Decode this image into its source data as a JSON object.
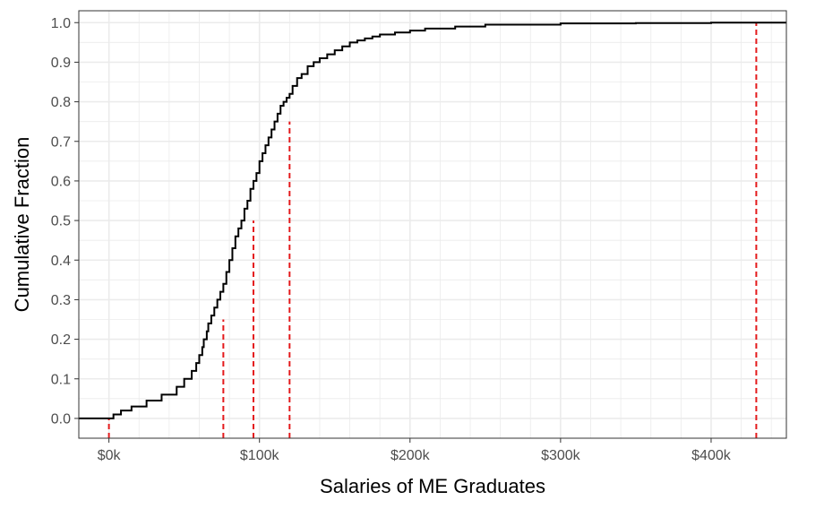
{
  "chart_data": {
    "type": "line",
    "title": "",
    "xlabel": "Salaries of ME Graduates",
    "ylabel": "Cumulative Fraction",
    "xlim": [
      -20000,
      450000
    ],
    "ylim": [
      -0.05,
      1.03
    ],
    "x_ticks": [
      0,
      100000,
      200000,
      300000,
      400000
    ],
    "x_tick_labels": [
      "$0k",
      "$100k",
      "$200k",
      "$300k",
      "$400k"
    ],
    "y_ticks": [
      0,
      0.1,
      0.2,
      0.3,
      0.4,
      0.5,
      0.6,
      0.7,
      0.8,
      0.9,
      1.0
    ],
    "y_tick_labels": [
      "0.0",
      "0.1",
      "0.2",
      "0.3",
      "0.4",
      "0.5",
      "0.6",
      "0.7",
      "0.8",
      "0.9",
      "1.0"
    ],
    "grid": true,
    "series": [
      {
        "kind": "ecdf-step",
        "color": "#000000",
        "x": [
          -20000,
          0,
          3000,
          8000,
          15000,
          25000,
          35000,
          45000,
          50000,
          55000,
          58000,
          60000,
          62000,
          63000,
          65000,
          66000,
          68000,
          70000,
          72000,
          74000,
          76000,
          78000,
          80000,
          82000,
          84000,
          86000,
          88000,
          90000,
          92000,
          94000,
          96000,
          98000,
          100000,
          102000,
          104000,
          106000,
          108000,
          110000,
          112000,
          114000,
          116000,
          118000,
          120000,
          122000,
          125000,
          128000,
          132000,
          136000,
          140000,
          145000,
          150000,
          155000,
          160000,
          165000,
          170000,
          175000,
          180000,
          190000,
          200000,
          210000,
          230000,
          250000,
          300000,
          350000,
          400000,
          430000,
          450000
        ],
        "y": [
          0,
          0,
          0.01,
          0.02,
          0.03,
          0.045,
          0.06,
          0.08,
          0.1,
          0.12,
          0.14,
          0.16,
          0.18,
          0.2,
          0.22,
          0.24,
          0.26,
          0.28,
          0.3,
          0.32,
          0.34,
          0.37,
          0.4,
          0.43,
          0.46,
          0.48,
          0.5,
          0.53,
          0.55,
          0.58,
          0.6,
          0.62,
          0.65,
          0.67,
          0.69,
          0.71,
          0.73,
          0.75,
          0.77,
          0.79,
          0.8,
          0.81,
          0.82,
          0.84,
          0.86,
          0.87,
          0.89,
          0.9,
          0.91,
          0.92,
          0.93,
          0.94,
          0.95,
          0.955,
          0.96,
          0.965,
          0.97,
          0.975,
          0.98,
          0.985,
          0.99,
          0.995,
          0.998,
          0.999,
          1.0,
          1.0,
          1.0
        ]
      }
    ],
    "reference_lines": {
      "color": "#e41a1c",
      "style": "dashed",
      "x": [
        0,
        76000,
        96000,
        120000,
        430000
      ],
      "y": [
        0,
        0.25,
        0.5,
        0.75,
        1.0
      ]
    }
  }
}
